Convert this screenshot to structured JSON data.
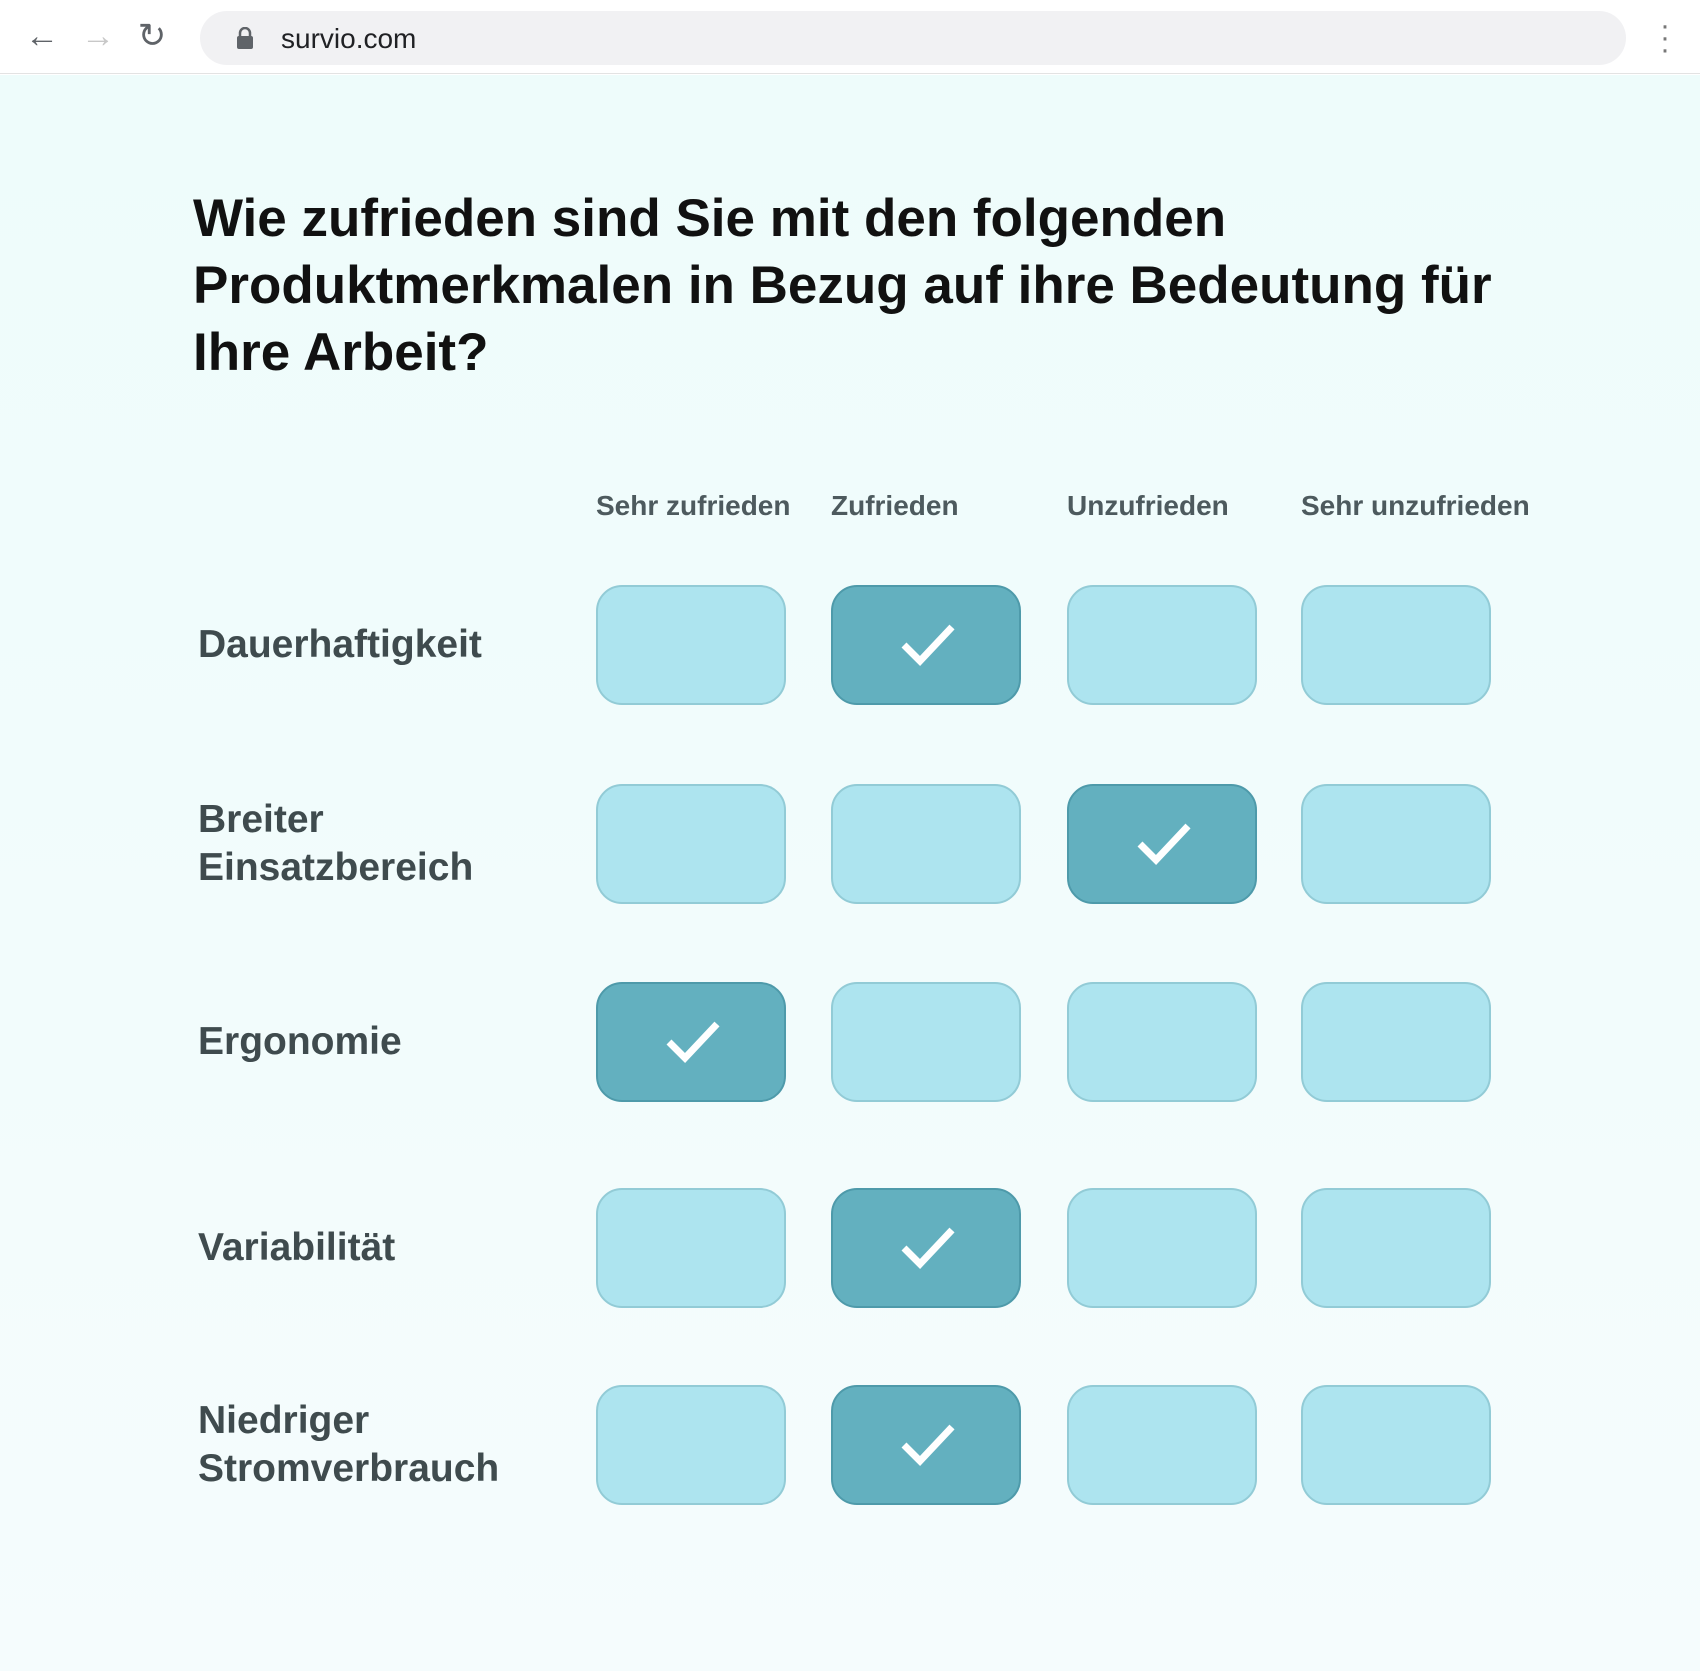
{
  "browser": {
    "url": "survio.com",
    "icons": [
      "back-arrow-icon",
      "forward-arrow-icon",
      "reload-icon",
      "lock-icon",
      "menu-dots-icon"
    ]
  },
  "question": "Wie zufrieden sind Sie mit den folgenden Produktmerkmalen in Bezug auf ihre Bedeutung für Ihre Arbeit?",
  "columns": [
    "Sehr zufrieden",
    "Zufrieden",
    "Unzufrieden",
    "Sehr unzufrieden"
  ],
  "rows": [
    {
      "label": "Dauerhaftigkeit",
      "selected": 1
    },
    {
      "label": "Breiter Einsatzbereich",
      "selected": 2
    },
    {
      "label": "Ergonomie",
      "selected": 0
    },
    {
      "label": "Variabilität",
      "selected": 1
    },
    {
      "label": "Niedriger Stromverbrauch",
      "selected": 1
    }
  ],
  "colors": {
    "unselected": "#ade4ef",
    "selected": "#63b0bf",
    "background": "#eefcfb"
  }
}
